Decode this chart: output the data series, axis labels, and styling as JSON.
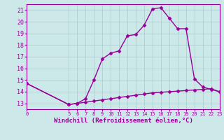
{
  "line1_x": [
    0,
    5,
    6,
    7,
    8,
    9,
    10,
    11,
    12,
    13,
    14,
    15,
    16,
    17,
    18,
    19,
    20,
    21,
    22,
    23
  ],
  "line1_y": [
    14.7,
    12.9,
    13.0,
    13.4,
    15.0,
    16.8,
    17.3,
    17.5,
    18.8,
    18.9,
    19.7,
    21.1,
    21.2,
    20.3,
    19.4,
    19.4,
    15.1,
    14.4,
    14.2,
    14.0
  ],
  "line2_x": [
    0,
    5,
    6,
    7,
    8,
    9,
    10,
    11,
    12,
    13,
    14,
    15,
    16,
    17,
    18,
    19,
    20,
    21,
    22,
    23
  ],
  "line2_y": [
    14.7,
    12.9,
    13.0,
    13.1,
    13.2,
    13.3,
    13.4,
    13.5,
    13.6,
    13.7,
    13.8,
    13.9,
    13.95,
    14.0,
    14.05,
    14.1,
    14.15,
    14.2,
    14.25,
    14.0
  ],
  "line_color": "#990099",
  "bg_color": "#cce8e8",
  "plot_bg_color": "#cce8e8",
  "grid_color": "#aacccc",
  "xlabel": "Windchill (Refroidissement éolien,°C)",
  "ylim": [
    12.5,
    21.5
  ],
  "xlim": [
    0,
    23
  ],
  "yticks": [
    13,
    14,
    15,
    16,
    17,
    18,
    19,
    20,
    21
  ],
  "xticks": [
    0,
    5,
    6,
    7,
    8,
    9,
    10,
    11,
    12,
    13,
    14,
    15,
    16,
    17,
    18,
    19,
    20,
    21,
    22,
    23
  ],
  "marker": "D",
  "marker_size": 2.5,
  "line_width": 1.0,
  "tick_fontsize": 6.0,
  "xlabel_fontsize": 6.5
}
